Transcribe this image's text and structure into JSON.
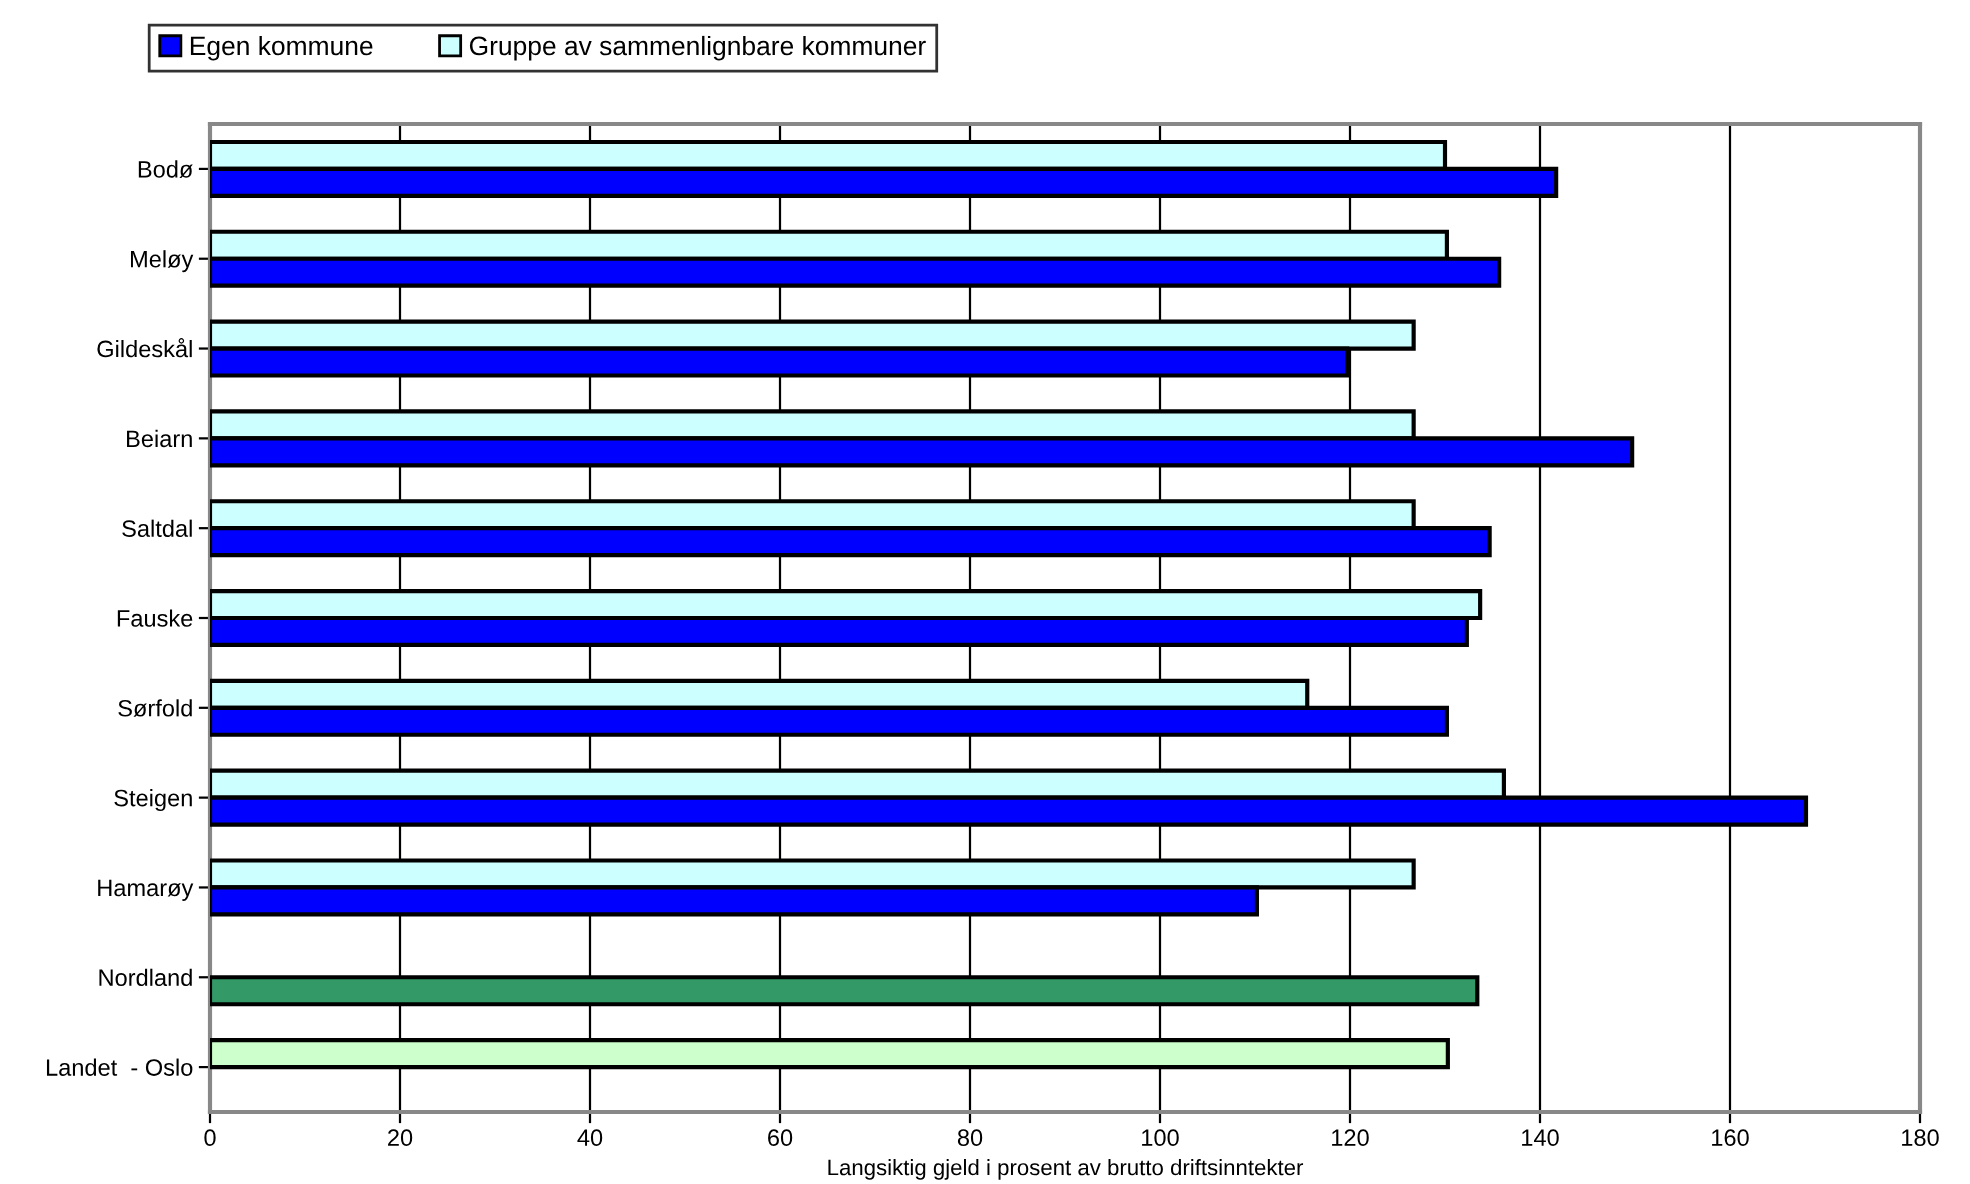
{
  "chart_data": {
    "type": "bar",
    "orientation": "horizontal",
    "xlabel": "Langsiktig gjeld i prosent av brutto driftsinntekter",
    "categories": [
      "Bodø",
      "Meløy",
      "Gildeskål",
      "Beiarn",
      "Saltdal",
      "Fauske",
      "Sørfold",
      "Steigen",
      "Hamarøy",
      "Nordland",
      "Landet  - Oslo"
    ],
    "series": [
      {
        "name": "Gruppe av sammenlignbare kommuner",
        "color": "#ccffff",
        "colors": [
          "#ccffff",
          "#ccffff",
          "#ccffff",
          "#ccffff",
          "#ccffff",
          "#ccffff",
          "#ccffff",
          "#ccffff",
          "#ccffff",
          "#ccffff",
          "#ccffcc"
        ],
        "values": [
          130.0,
          130.2,
          126.7,
          126.7,
          126.7,
          133.7,
          115.5,
          136.2,
          126.7,
          null,
          130.3
        ]
      },
      {
        "name": "Egen kommune",
        "color": "#0000ff",
        "colors": [
          "#0000ff",
          "#0000ff",
          "#0000ff",
          "#0000ff",
          "#0000ff",
          "#0000ff",
          "#0000ff",
          "#0000ff",
          "#0000ff",
          "#339966",
          "#0000ff"
        ],
        "values": [
          141.7,
          135.7,
          119.7,
          149.7,
          134.7,
          132.3,
          130.2,
          168.0,
          110.2,
          133.4,
          null
        ]
      }
    ],
    "xlim": [
      0,
      180
    ],
    "xticks": [
      0,
      20,
      40,
      60,
      80,
      100,
      120,
      140,
      160,
      180
    ],
    "grid": "x",
    "legend": "top left"
  }
}
